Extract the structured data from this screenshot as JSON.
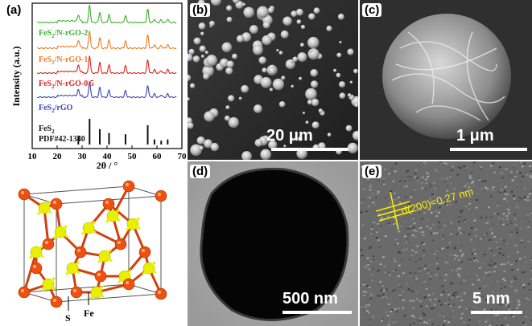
{
  "panels": {
    "a": {
      "label": "(a)"
    },
    "b": {
      "label": "(b)",
      "scale_text": "20 μm"
    },
    "c": {
      "label": "(c)",
      "scale_text": "1 μm"
    },
    "d": {
      "label": "(d)",
      "scale_text": "500 nm"
    },
    "e": {
      "label": "(e)",
      "scale_text": "5 nm",
      "lattice_text": "d(200)=0.27 nm"
    }
  },
  "xrd": {
    "ylabel": "Intensity (a.u.)",
    "xlabel": "2θ / °",
    "xticks": [
      "10",
      "20",
      "30",
      "40",
      "50",
      "60",
      "70"
    ],
    "xlim": [
      10,
      70
    ]
  },
  "chart_data": {
    "type": "line",
    "title": "",
    "xlabel": "2θ / °",
    "ylabel": "Intensity (a.u.)",
    "xlim": [
      10,
      70
    ],
    "peak_positions_2theta": [
      28.5,
      33.0,
      37.1,
      40.8,
      47.4,
      56.3,
      59.0,
      61.7,
      64.3
    ],
    "series": [
      {
        "name": "FeS₂/N-rGO-2",
        "color": "#3ab02a"
      },
      {
        "name": "FeS₂/N-rGO-1",
        "color": "#f07a1e"
      },
      {
        "name": "FeS₂/N-rGO-0.5",
        "color": "#e0201c"
      },
      {
        "name": "FeS₂/rGO",
        "color": "#3a44b0"
      },
      {
        "name": "FeS₂ PDF#42-1340",
        "color": "#111111"
      }
    ],
    "reference_stick_heights": [
      0.35,
      1.0,
      0.6,
      0.45,
      0.4,
      0.75,
      0.2,
      0.15,
      0.2
    ]
  },
  "legend_texts": {
    "s1a": "FeS",
    "s1b": "2",
    "s1c": "/N-rGO-2",
    "s2a": "FeS",
    "s2b": "2",
    "s2c": "/N-rGO-1",
    "s3a": "FeS",
    "s3b": "2",
    "s3c": "/N-rGO-0.5",
    "s4a": "FeS",
    "s4b": "2",
    "s4c": "/rGO",
    "s5a": "FeS",
    "s5b": "2",
    "s5d": "PDF#42-1340"
  },
  "crystal": {
    "s_label": "S",
    "fe_label": "Fe"
  }
}
